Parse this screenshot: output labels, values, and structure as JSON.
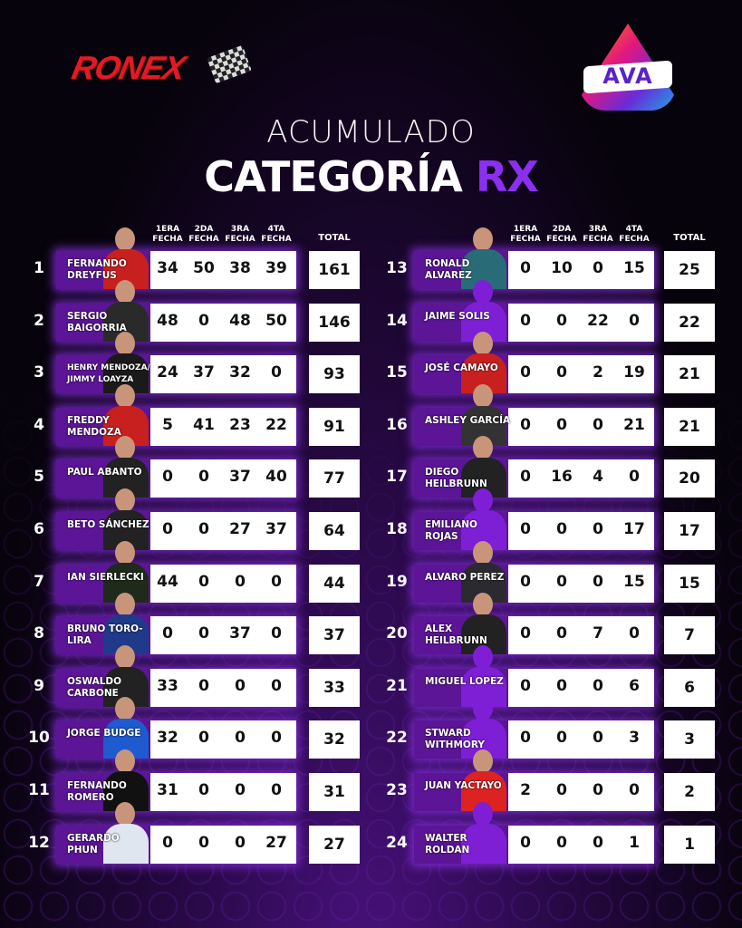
{
  "brand": {
    "left_logo": "RONEX",
    "right_logo": "AVA"
  },
  "title": {
    "line1": "ACUMULADO",
    "line2_main": "CATEGORÍA",
    "line2_accent": "RX"
  },
  "colors": {
    "accent": "#8b2ff0",
    "name_box": "#5b1596",
    "ronex_red": "#e21b23"
  },
  "columns": {
    "f1": "1ERA FECHA",
    "f2": "2DA FECHA",
    "f3": "3RA FECHA",
    "f4": "4TA FECHA",
    "total": "TOTAL"
  },
  "standings": [
    {
      "pos": "1",
      "name": "FERNANDO DREYFUS",
      "points": [
        34,
        50,
        38,
        39
      ],
      "total": 161,
      "photo": "driver-photo"
    },
    {
      "pos": "2",
      "name": "SERGIO BAIGORRIA",
      "points": [
        48,
        0,
        48,
        50
      ],
      "total": 146,
      "photo": "driver-photo"
    },
    {
      "pos": "3",
      "name": "HENRY MENDOZA/ JIMMY LOAYZA",
      "points": [
        24,
        37,
        32,
        0
      ],
      "total": 93,
      "photo": "driver-photo"
    },
    {
      "pos": "4",
      "name": "FREDDY MENDOZA",
      "points": [
        5,
        41,
        23,
        22
      ],
      "total": 91,
      "photo": "driver-photo"
    },
    {
      "pos": "5",
      "name": "PAUL ABANTO",
      "points": [
        0,
        0,
        37,
        40
      ],
      "total": 77,
      "photo": "driver-photo"
    },
    {
      "pos": "6",
      "name": "BETO SÁNCHEZ",
      "points": [
        0,
        0,
        27,
        37
      ],
      "total": 64,
      "photo": "driver-photo"
    },
    {
      "pos": "7",
      "name": "IAN SIERLECKI",
      "points": [
        44,
        0,
        0,
        0
      ],
      "total": 44,
      "photo": "driver-photo"
    },
    {
      "pos": "8",
      "name": "BRUNO TORO-LIRA",
      "points": [
        0,
        0,
        37,
        0
      ],
      "total": 37,
      "photo": "driver-photo"
    },
    {
      "pos": "9",
      "name": "OSWALDO CARBONE",
      "points": [
        33,
        0,
        0,
        0
      ],
      "total": 33,
      "photo": "driver-photo"
    },
    {
      "pos": "10",
      "name": "JORGE BUDGE",
      "points": [
        32,
        0,
        0,
        0
      ],
      "total": 32,
      "photo": "driver-photo"
    },
    {
      "pos": "11",
      "name": "FERNANDO ROMERO",
      "points": [
        31,
        0,
        0,
        0
      ],
      "total": 31,
      "photo": "driver-photo"
    },
    {
      "pos": "12",
      "name": "GERARDO PHUN",
      "points": [
        0,
        0,
        0,
        27
      ],
      "total": 27,
      "photo": "driver-photo"
    },
    {
      "pos": "13",
      "name": "RONALD ALVAREZ",
      "points": [
        0,
        10,
        0,
        15
      ],
      "total": 25,
      "photo": "driver-photo"
    },
    {
      "pos": "14",
      "name": "JAIME SOLIS",
      "points": [
        0,
        0,
        22,
        0
      ],
      "total": 22,
      "photo": "silhouette"
    },
    {
      "pos": "15",
      "name": "JOSÉ CAMAYO",
      "points": [
        0,
        0,
        2,
        19
      ],
      "total": 21,
      "photo": "driver-photo"
    },
    {
      "pos": "16",
      "name": "ASHLEY GARCÍA",
      "points": [
        0,
        0,
        0,
        21
      ],
      "total": 21,
      "photo": "driver-photo"
    },
    {
      "pos": "17",
      "name": "DIEGO HEILBRUNN",
      "points": [
        0,
        16,
        4,
        0
      ],
      "total": 20,
      "photo": "driver-photo"
    },
    {
      "pos": "18",
      "name": "EMILIANO ROJAS",
      "points": [
        0,
        0,
        0,
        17
      ],
      "total": 17,
      "photo": "silhouette"
    },
    {
      "pos": "19",
      "name": "ALVARO PEREZ",
      "points": [
        0,
        0,
        0,
        15
      ],
      "total": 15,
      "photo": "driver-photo"
    },
    {
      "pos": "20",
      "name": "ALEX HEILBRUNN",
      "points": [
        0,
        0,
        7,
        0
      ],
      "total": 7,
      "photo": "driver-photo"
    },
    {
      "pos": "21",
      "name": "MIGUEL LOPEZ",
      "points": [
        0,
        0,
        0,
        6
      ],
      "total": 6,
      "photo": "silhouette"
    },
    {
      "pos": "22",
      "name": "STWARD WITHMORY",
      "points": [
        0,
        0,
        0,
        3
      ],
      "total": 3,
      "photo": "silhouette"
    },
    {
      "pos": "23",
      "name": "JUAN YACTAYO",
      "points": [
        2,
        0,
        0,
        0
      ],
      "total": 2,
      "photo": "driver-photo"
    },
    {
      "pos": "24",
      "name": "WALTER ROLDAN",
      "points": [
        0,
        0,
        0,
        1
      ],
      "total": 1,
      "photo": "silhouette"
    }
  ]
}
